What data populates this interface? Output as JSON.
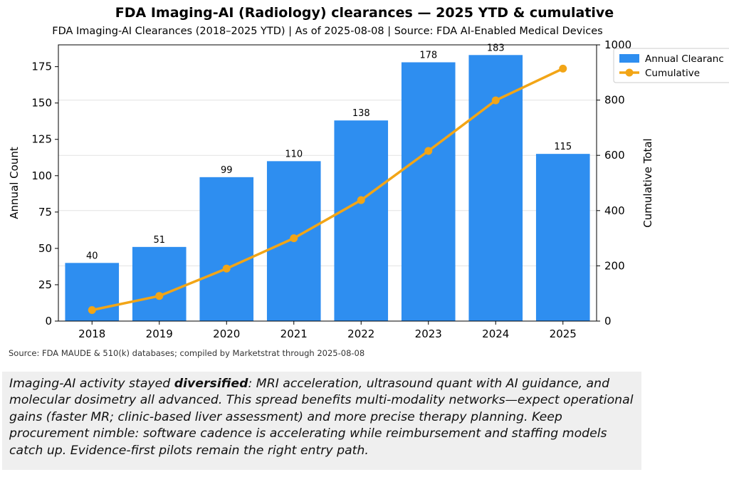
{
  "title": "FDA Imaging-AI (Radiology) clearances — 2025 YTD & cumulative",
  "subtitle": "FDA Imaging-AI Clearances (2018–2025 YTD)  |  As of 2025-08-08  |  Source: FDA AI-Enabled Medical Devices",
  "footnote": "Source: FDA MAUDE & 510(k) databases; compiled by Marketstrat through 2025-08-08",
  "commentary": {
    "lead": "Imaging-AI activity stayed ",
    "emphasis": "diversified",
    "rest": ": MRI acceleration, ultrasound quant with AI guidance, and molecular dosimetry all advanced. This spread benefits multi-modality networks—expect operational gains (faster MR; clinic-based liver assessment) and more precise therapy planning. Keep procurement nimble: software cadence is accelerating while reimbursement and staffing models catch up. Evidence-first pilots remain the right entry path."
  },
  "chart_data": {
    "type": "bar",
    "categories": [
      "2018",
      "2019",
      "2020",
      "2021",
      "2022",
      "2023",
      "2024",
      "2025"
    ],
    "series": [
      {
        "name": "Annual Clearances",
        "type": "bar",
        "axis": "left",
        "values": [
          40,
          51,
          99,
          110,
          138,
          178,
          183,
          115
        ],
        "color": "#2e8ef0"
      },
      {
        "name": "Cumulative",
        "type": "line",
        "axis": "right",
        "values": [
          40,
          91,
          190,
          300,
          438,
          616,
          799,
          914
        ],
        "color": "#f2a516"
      }
    ],
    "ylabel": "Annual Count",
    "y2label": "Cumulative Total",
    "ylim": [
      0,
      190
    ],
    "y2lim": [
      0,
      1000
    ],
    "yticks": [
      0,
      25,
      50,
      75,
      100,
      125,
      150,
      175
    ],
    "y2ticks": [
      0,
      200,
      400,
      600,
      800,
      1000
    ],
    "grid": "horizontal",
    "legend": "top-right",
    "legend_labels": [
      "Annual Clearanc",
      "Cumulative"
    ]
  }
}
